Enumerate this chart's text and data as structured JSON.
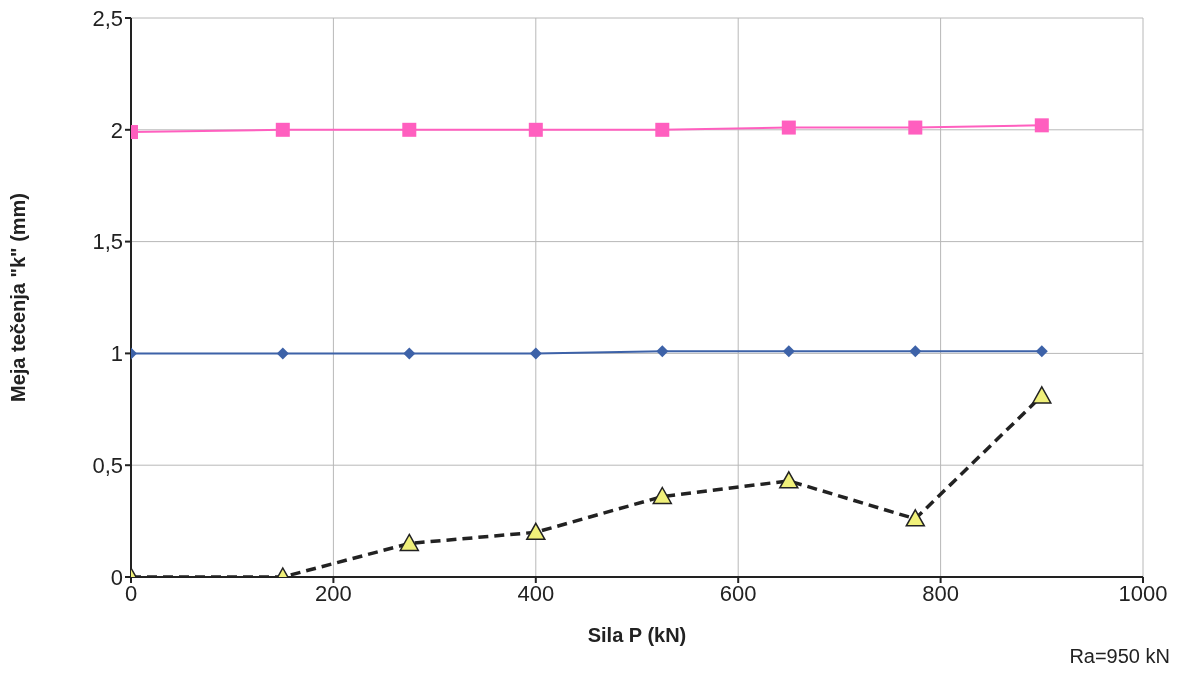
{
  "chart_data": {
    "type": "line",
    "xlabel": "Sila P (kN)",
    "ylabel": "Meja tečenja \"k\" (mm)",
    "x": [
      0,
      150,
      275,
      400,
      525,
      650,
      775,
      900
    ],
    "series": [
      {
        "color": "#ff5fbf",
        "marker": "square",
        "line_style": "solid",
        "values": [
          1.99,
          2.0,
          2.0,
          2.0,
          2.0,
          2.01,
          2.01,
          2.02
        ]
      },
      {
        "color": "#3d62a8",
        "marker": "diamond",
        "line_style": "solid",
        "values": [
          1.0,
          1.0,
          1.0,
          1.0,
          1.01,
          1.01,
          1.01,
          1.01
        ]
      },
      {
        "color": "#222222",
        "colors": [
          "#f0f07a",
          "#f0f07a",
          "#f0f07a",
          "#f0f07a",
          "#f0f07a",
          "#f0f07a",
          "#f0f07a",
          "#f0f07a"
        ],
        "marker": "triangle",
        "line_style": "dashed",
        "values": [
          0,
          0,
          0.15,
          0.2,
          0.36,
          0.43,
          0.26,
          0.81
        ]
      }
    ],
    "xlim": [
      0,
      1000
    ],
    "xticks": [
      0,
      200,
      400,
      600,
      800,
      1000
    ],
    "ylim": [
      0,
      2.5
    ],
    "yticks": [
      0,
      {
        "value": 0.5,
        "label": "0,5"
      },
      1,
      {
        "value": 1.5,
        "label": "1,5"
      },
      2,
      {
        "value": 2.5,
        "label": "2,5"
      }
    ],
    "grid": true,
    "legend": false,
    "annotations": [
      "Ra=950 kN"
    ]
  }
}
